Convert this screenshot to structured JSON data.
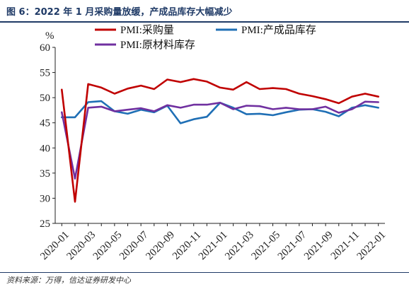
{
  "header": {
    "title": "图 6：2022 年 1 月采购量放缓，产成品库存大幅减少"
  },
  "footer": {
    "source": "资料来源：万得，信达证券研发中心"
  },
  "chart_data": {
    "type": "line",
    "y_unit": "%",
    "ylim": [
      25,
      60
    ],
    "yticks": [
      25,
      30,
      35,
      40,
      45,
      50,
      55,
      60
    ],
    "xtick_labels": [
      "2020-01",
      "2020-03",
      "2020-05",
      "2020-07",
      "2020-09",
      "2020-11",
      "2021-01",
      "2021-03",
      "2021-05",
      "2021-07",
      "2021-09",
      "2021-11",
      "2022-01"
    ],
    "x": [
      "2020-01",
      "2020-02",
      "2020-03",
      "2020-04",
      "2020-05",
      "2020-06",
      "2020-07",
      "2020-08",
      "2020-09",
      "2020-10",
      "2020-11",
      "2020-12",
      "2021-01",
      "2021-02",
      "2021-03",
      "2021-04",
      "2021-05",
      "2021-06",
      "2021-07",
      "2021-08",
      "2021-09",
      "2021-10",
      "2021-11",
      "2021-12",
      "2022-01"
    ],
    "grid": false,
    "legend_position": "top",
    "series": [
      {
        "name": "PMI:采购量",
        "color": "#c00000",
        "values": [
          51.6,
          29.3,
          52.7,
          52.0,
          50.8,
          51.8,
          52.4,
          51.7,
          53.6,
          53.1,
          53.7,
          53.2,
          52.0,
          51.6,
          53.1,
          51.7,
          51.9,
          51.7,
          50.8,
          50.3,
          49.7,
          48.9,
          50.2,
          50.8,
          50.2
        ]
      },
      {
        "name": "PMI:产成品库存",
        "color": "#1f6fb5",
        "values": [
          46.1,
          46.1,
          49.1,
          49.3,
          47.3,
          46.8,
          47.6,
          47.1,
          48.4,
          44.9,
          45.7,
          46.2,
          49.0,
          48.0,
          46.7,
          46.8,
          46.5,
          47.1,
          47.6,
          47.7,
          47.2,
          46.3,
          48.0,
          48.5,
          48.0
        ]
      },
      {
        "name": "PMI:原材料库存",
        "color": "#7030a0",
        "values": [
          47.1,
          33.9,
          48.0,
          48.2,
          47.3,
          47.6,
          47.9,
          47.3,
          48.5,
          48.0,
          48.6,
          48.6,
          49.0,
          47.7,
          48.4,
          48.3,
          47.7,
          48.0,
          47.7,
          47.7,
          48.2,
          47.0,
          47.7,
          49.2,
          49.1
        ]
      }
    ]
  }
}
